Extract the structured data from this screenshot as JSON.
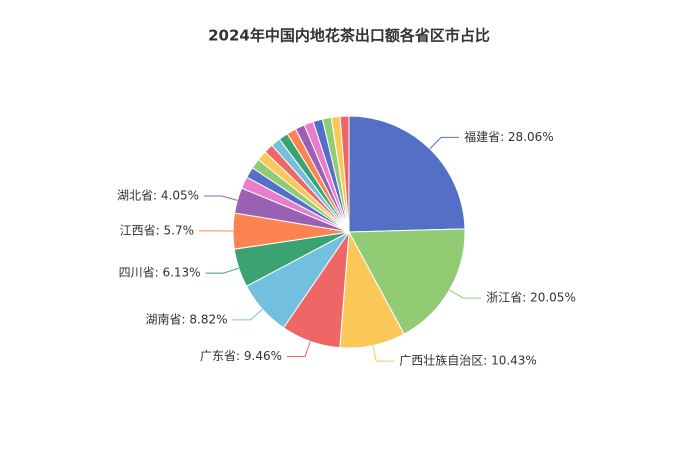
{
  "chart_data": {
    "type": "pie",
    "title": "2024年中国内地花茶出口额各省区市占比",
    "values": [
      28.06,
      20.05,
      10.43,
      9.46,
      8.82,
      6.13,
      5.7,
      4.05,
      1.9,
      1.7,
      1.6,
      1.6,
      1.5,
      1.5,
      1.5,
      1.5,
      1.5,
      1.5,
      1.5,
      1.4,
      1.4,
      1.4
    ],
    "value_labels": [
      "福建省: 28.06%",
      "浙江省: 20.05%",
      "广西壮族自治区: 10.43%",
      "广东省: 9.46%",
      "湖南省: 8.82%",
      "四川省: 6.13%",
      "江西省: 5.7%",
      "湖北省: 4.05%",
      null,
      null,
      null,
      null,
      null,
      null,
      null,
      null,
      null,
      null,
      null,
      null,
      null,
      null
    ],
    "colors": [
      "#5470c6",
      "#91cc75",
      "#fac858",
      "#ee6666",
      "#73c0de",
      "#3ba272",
      "#fc8452",
      "#9a60b4",
      "#ea7ccc"
    ]
  }
}
